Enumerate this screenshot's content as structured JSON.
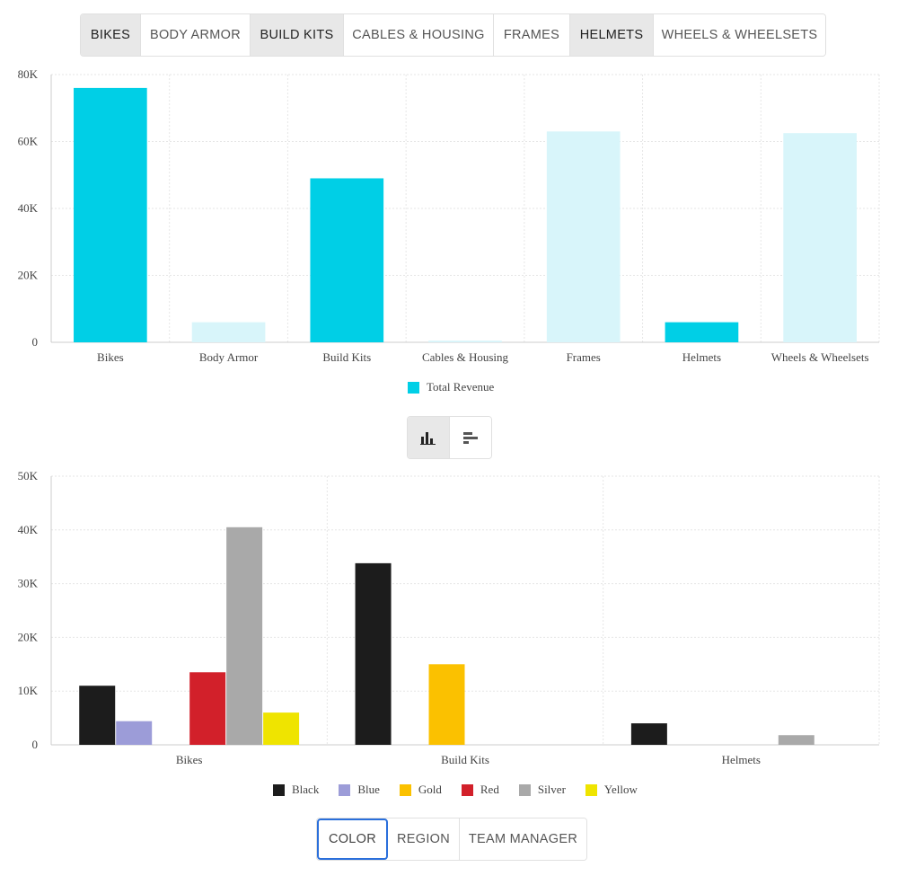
{
  "category_tabs": [
    {
      "label": "BIKES",
      "active": true
    },
    {
      "label": "BODY ARMOR",
      "active": false
    },
    {
      "label": "BUILD KITS",
      "active": true
    },
    {
      "label": "CABLES & HOUSING",
      "active": false
    },
    {
      "label": "FRAMES",
      "active": false
    },
    {
      "label": "HELMETS",
      "active": true
    },
    {
      "label": "WHEELS & WHEELSETS",
      "active": false
    }
  ],
  "view_toggle": {
    "bar_icon": "vertical-bar-chart-icon",
    "hbar_icon": "horizontal-bar-chart-icon",
    "active": "vertical"
  },
  "breakdown_tabs": [
    {
      "label": "COLOR",
      "selected": true
    },
    {
      "label": "REGION",
      "selected": false
    },
    {
      "label": "TEAM MANAGER",
      "selected": false
    }
  ],
  "colors": {
    "revenue_selected": "#00cfe6",
    "revenue_unselected": "#d8f5fa",
    "Black": "#1c1c1c",
    "Blue": "#9c9cd8",
    "Gold": "#fbc100",
    "Red": "#d2202a",
    "Silver": "#a9a9a9",
    "Yellow": "#efe400"
  },
  "chart_data": [
    {
      "type": "bar",
      "categories": [
        "Bikes",
        "Body Armor",
        "Build Kits",
        "Cables & Housing",
        "Frames",
        "Helmets",
        "Wheels & Wheelsets"
      ],
      "series": [
        {
          "name": "Total Revenue",
          "values": [
            76000,
            6000,
            49000,
            500,
            63000,
            6000,
            62500
          ]
        }
      ],
      "selected": [
        true,
        false,
        true,
        false,
        false,
        true,
        false
      ],
      "yticks": [
        "0",
        "20K",
        "40K",
        "60K",
        "80K"
      ],
      "ylim": [
        0,
        80000
      ],
      "grid": true,
      "legend": "bottom-center"
    },
    {
      "type": "bar",
      "categories": [
        "Bikes",
        "Build Kits",
        "Helmets"
      ],
      "series": [
        {
          "name": "Black",
          "values": [
            11000,
            33800,
            4000
          ]
        },
        {
          "name": "Blue",
          "values": [
            4400,
            0,
            0
          ]
        },
        {
          "name": "Gold",
          "values": [
            0,
            15000,
            0
          ]
        },
        {
          "name": "Red",
          "values": [
            13500,
            0,
            0
          ]
        },
        {
          "name": "Silver",
          "values": [
            40500,
            0,
            1800
          ]
        },
        {
          "name": "Yellow",
          "values": [
            6000,
            0,
            0
          ]
        }
      ],
      "yticks": [
        "0",
        "10K",
        "20K",
        "30K",
        "40K",
        "50K"
      ],
      "ylim": [
        0,
        50000
      ],
      "grid": true,
      "legend": "bottom-center"
    }
  ]
}
